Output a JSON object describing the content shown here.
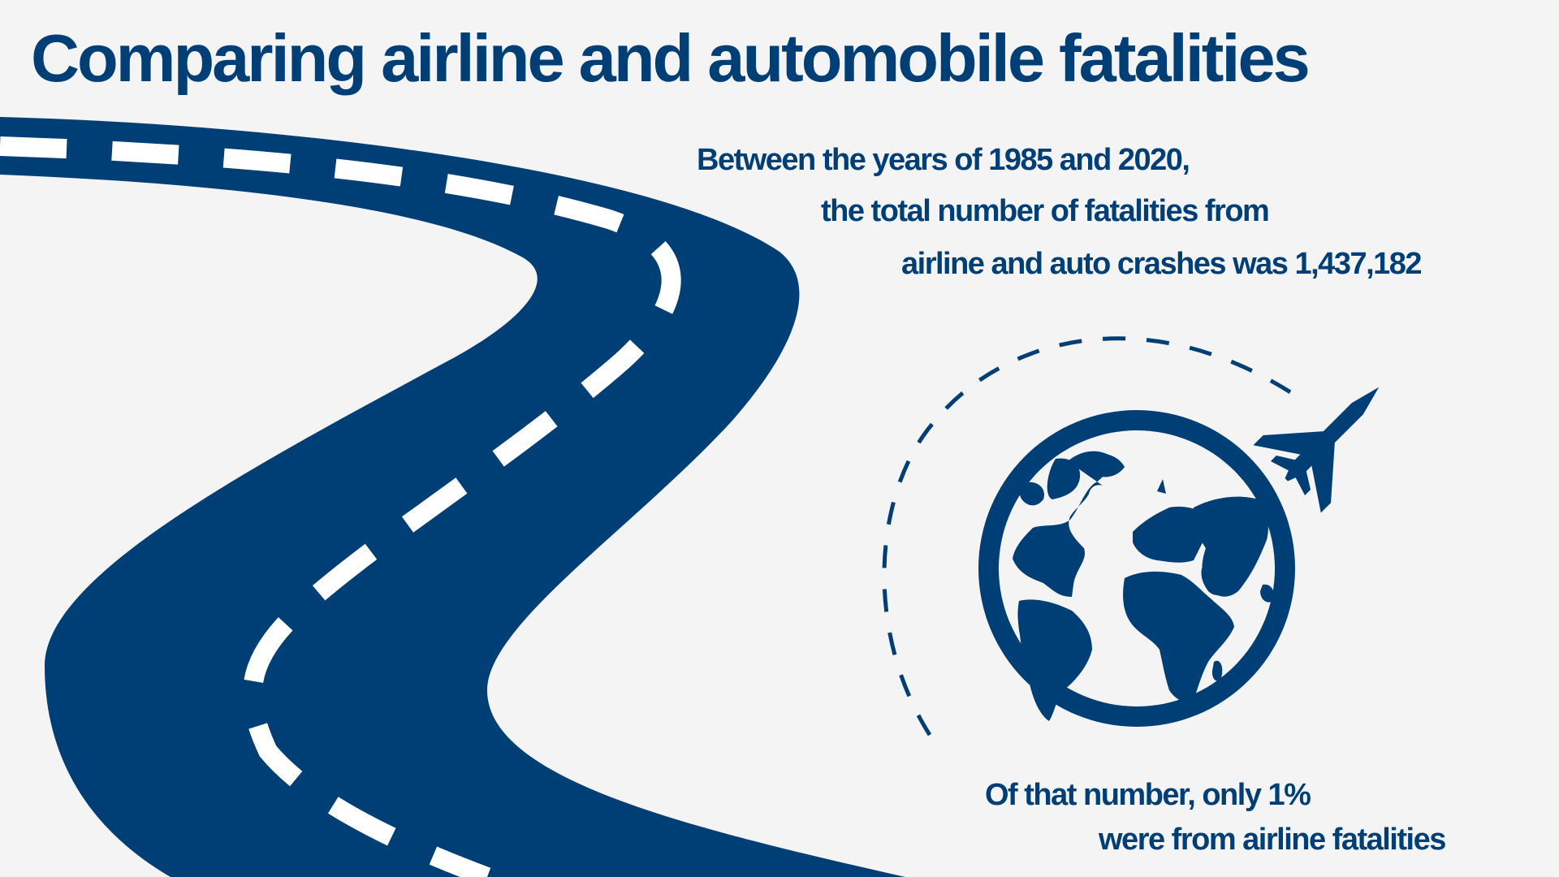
{
  "title": "Comparing airline and automobile fatalities",
  "intro_text": [
    "Between the years of 1985 and 2020,",
    "the total number of fatalities from",
    "airline and auto crashes was 1,437,182"
  ],
  "conclusion_text": [
    "Of that number, only 1%",
    "were from airline fatalities"
  ],
  "colors": {
    "primary": "#003f76",
    "background": "#f4f4f4",
    "road_marking": "#ffffff"
  },
  "icons": [
    "road-illustration",
    "globe-icon",
    "airplane-icon",
    "flight-path-arc"
  ]
}
